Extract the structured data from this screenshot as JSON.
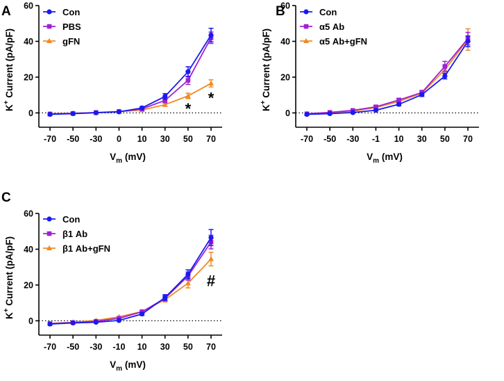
{
  "colors": {
    "con": "#1a1af0",
    "mid": "#a020d6",
    "orange": "#f08a22",
    "axis": "#000000"
  },
  "chart_data": [
    {
      "panel": "A",
      "type": "line",
      "categories": [
        "-70",
        "-50",
        "-30",
        "0",
        "10",
        "30",
        "50",
        "70"
      ],
      "xlabel_main": "V",
      "xlabel_sub": "m",
      "xlabel_unit": "(mV)",
      "ylabel_pre": "K",
      "ylabel_sup": "+",
      "ylabel_post": " Current (pA/pF)",
      "ylim": [
        -8,
        60
      ],
      "yticks": [
        0,
        20,
        40,
        60
      ],
      "series": [
        {
          "name": "Con",
          "color": "#1a1af0",
          "marker": "circle",
          "values": [
            -0.8,
            -0.4,
            0.1,
            0.6,
            2.8,
            9.2,
            23.0,
            43.5
          ],
          "errors": [
            0.6,
            0.5,
            0.5,
            0.5,
            0.8,
            1.6,
            2.8,
            3.8
          ]
        },
        {
          "name": "PBS",
          "color": "#a020d6",
          "marker": "square",
          "values": [
            -0.6,
            -0.3,
            0.2,
            0.8,
            2.2,
            7.0,
            18.2,
            42.0
          ],
          "errors": [
            0.5,
            0.4,
            0.4,
            0.5,
            0.7,
            1.3,
            2.3,
            3.2
          ]
        },
        {
          "name": "gFN",
          "color": "#f08a22",
          "marker": "triangle",
          "values": [
            -0.5,
            -0.2,
            0.1,
            0.7,
            1.6,
            4.6,
            9.5,
            16.5
          ],
          "errors": [
            0.4,
            0.4,
            0.4,
            0.4,
            0.5,
            0.9,
            1.5,
            2.0
          ]
        }
      ],
      "annotations": [
        {
          "text": "*",
          "category": "50",
          "y": 2.5
        },
        {
          "text": "*",
          "category": "70",
          "y": 8.5
        }
      ]
    },
    {
      "panel": "B",
      "type": "line",
      "categories": [
        "-70",
        "-50",
        "-30",
        "-1",
        "10",
        "30",
        "50",
        "70"
      ],
      "xlabel_main": "V",
      "xlabel_sub": "m",
      "xlabel_unit": "(mV)",
      "ylabel_pre": "K",
      "ylabel_sup": "+",
      "ylabel_post": " Current (pA/pF)",
      "ylim": [
        -8,
        60
      ],
      "yticks": [
        0,
        20,
        40,
        60
      ],
      "series": [
        {
          "name": "Con",
          "color": "#1a1af0",
          "marker": "circle",
          "values": [
            -0.8,
            -0.4,
            0.2,
            1.5,
            4.8,
            10.2,
            20.6,
            40.0
          ],
          "errors": [
            0.5,
            0.5,
            0.5,
            0.6,
            0.8,
            1.0,
            1.6,
            3.0
          ]
        },
        {
          "name": "α5 Ab",
          "color": "#a020d6",
          "marker": "square",
          "values": [
            -0.5,
            0.3,
            1.4,
            3.4,
            7.2,
            11.4,
            26.0,
            41.5
          ],
          "errors": [
            0.5,
            0.6,
            0.6,
            0.7,
            1.0,
            1.2,
            2.8,
            3.5
          ]
        },
        {
          "name": "α5 Ab+gFN",
          "color": "#f08a22",
          "marker": "triangle",
          "values": [
            -0.6,
            0.0,
            1.0,
            3.0,
            6.4,
            11.0,
            24.2,
            41.0
          ],
          "errors": [
            0.5,
            0.5,
            0.6,
            0.7,
            0.9,
            1.1,
            2.4,
            6.0
          ]
        }
      ],
      "annotations": []
    },
    {
      "panel": "C",
      "type": "line",
      "categories": [
        "-70",
        "-50",
        "-30",
        "-10",
        "10",
        "30",
        "50",
        "70"
      ],
      "xlabel_main": "V",
      "xlabel_sub": "m",
      "xlabel_unit": "(mV)",
      "ylabel_pre": "K",
      "ylabel_sup": "+",
      "ylabel_post": " Current (pA/pF)",
      "ylim": [
        -8,
        60
      ],
      "yticks": [
        0,
        20,
        40,
        60
      ],
      "series": [
        {
          "name": "Con",
          "color": "#1a1af0",
          "marker": "circle",
          "values": [
            -1.8,
            -1.2,
            -0.8,
            0.2,
            3.8,
            13.0,
            26.0,
            46.5
          ],
          "errors": [
            0.5,
            0.5,
            0.5,
            0.5,
            0.8,
            1.6,
            2.5,
            4.5
          ]
        },
        {
          "name": "β1 Ab",
          "color": "#a020d6",
          "marker": "square",
          "values": [
            -1.6,
            -1.0,
            -0.3,
            1.4,
            5.0,
            12.6,
            25.0,
            44.0
          ],
          "errors": [
            0.5,
            0.5,
            0.5,
            0.6,
            0.9,
            1.4,
            2.3,
            3.8
          ]
        },
        {
          "name": "β1  Ab+gFN",
          "color": "#f08a22",
          "marker": "triangle",
          "values": [
            -1.5,
            -0.8,
            0.2,
            2.2,
            5.2,
            11.8,
            21.0,
            34.5
          ],
          "errors": [
            0.5,
            0.5,
            0.5,
            0.6,
            0.9,
            1.3,
            2.6,
            3.8
          ]
        }
      ],
      "annotations": [
        {
          "text": "#",
          "category": "70",
          "y": 22.5
        }
      ]
    }
  ]
}
